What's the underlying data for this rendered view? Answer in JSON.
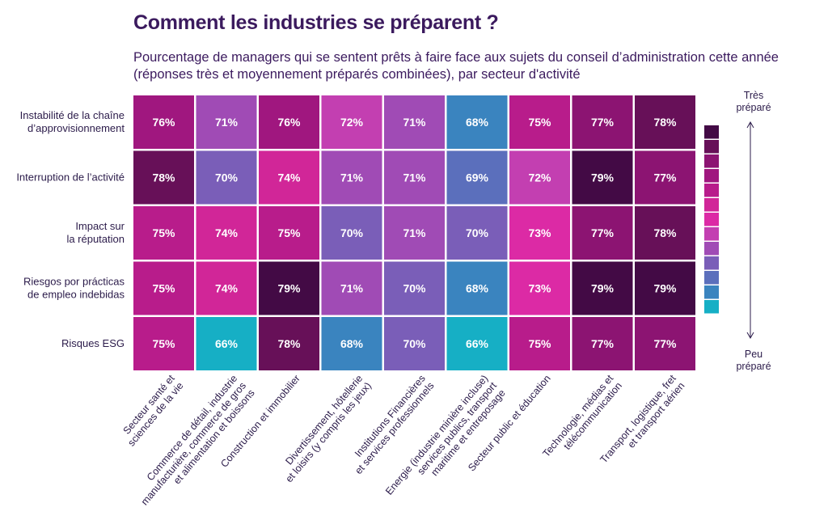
{
  "title": "Comment les industries se préparent ?",
  "subtitle": "Pourcentage de managers qui se sentent prêts à faire face aux sujets du conseil d’administration cette année (réponses très et moyennement préparés combinées), par secteur d'activité",
  "chart_data": {
    "type": "heatmap",
    "rows": [
      "Instabilité de la chaîne\nd’approvisionnement",
      "Interruption de l’activité",
      "Impact sur\nla réputation",
      "Riesgos por prácticas\nde empleo indebidas",
      "Risques ESG"
    ],
    "columns": [
      "Secteur santé et\nsciences de la vie",
      "Commerce de détail, industrie\nmanufacturière, commerce de gros\net alimentation et boissons",
      "Construction et immobilier",
      "Divertissement, hôtellerie\net loisirs (y compris les jeux)",
      "Institutions Financières\net services professionnels",
      "Energie (industrie minière incluse)\nservices publics, transport\nmaritime et entreposage",
      "Secteur public et éducation",
      "Technologie, médias et\ntélécommunication",
      "Transport, logistique, fret\net transport aérien"
    ],
    "values": [
      [
        76,
        71,
        76,
        72,
        71,
        68,
        75,
        77,
        78
      ],
      [
        78,
        70,
        74,
        71,
        71,
        69,
        72,
        79,
        77
      ],
      [
        75,
        74,
        75,
        70,
        71,
        70,
        73,
        77,
        78
      ],
      [
        75,
        74,
        79,
        71,
        70,
        68,
        73,
        79,
        79
      ],
      [
        75,
        66,
        78,
        68,
        70,
        66,
        75,
        77,
        77
      ]
    ],
    "value_suffix": "%",
    "color_scale": {
      "66": "#16afc5",
      "68": "#3a84bf",
      "69": "#5b6fbc",
      "70": "#7a5eb8",
      "71": "#a04bb5",
      "72": "#c33fb1",
      "73": "#dc2aa5",
      "74": "#d12698",
      "75": "#b81c8b",
      "76": "#a0177f",
      "77": "#8c1472",
      "78": "#671058",
      "79": "#430a45"
    },
    "legend_swatches": [
      "#430a45",
      "#671058",
      "#8c1472",
      "#a0177f",
      "#b81c8b",
      "#d12698",
      "#dc2aa5",
      "#c33fb1",
      "#a04bb5",
      "#7a5eb8",
      "#5b6fbc",
      "#3a84bf",
      "#16afc5"
    ],
    "legend_top_label": "Très\npréparé",
    "legend_bottom_label": "Peu\npréparé",
    "text_color": "#ffffff"
  }
}
